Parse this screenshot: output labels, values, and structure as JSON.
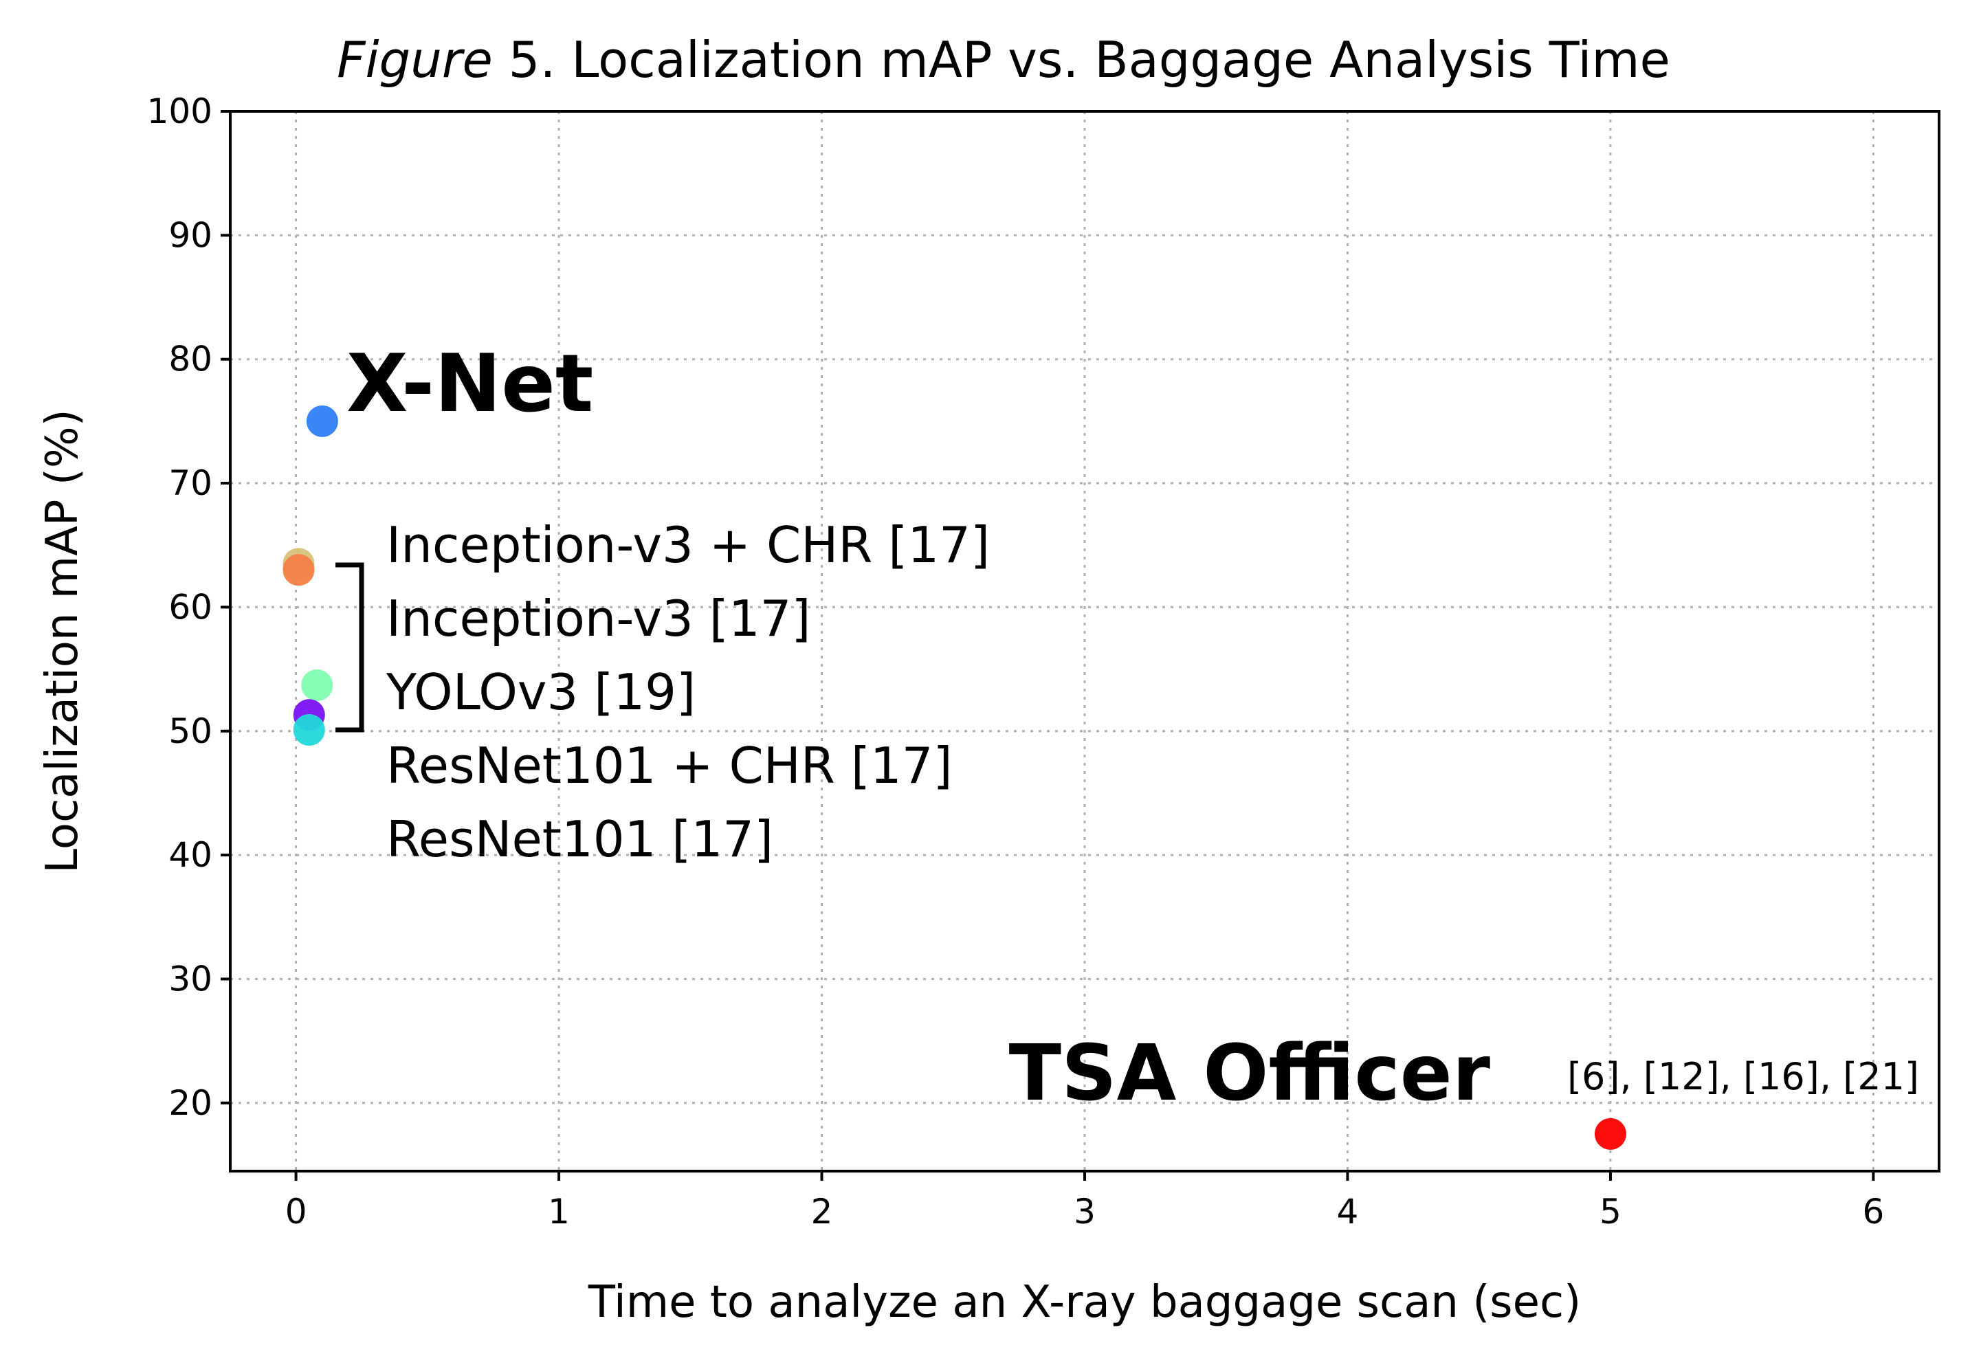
{
  "chart_data": {
    "type": "scatter",
    "title_italic": "Figure",
    "title_rest": " 5. Localization mAP vs. Baggage Analysis Time",
    "xlabel": "Time to analyze an X-ray baggage scan (sec)",
    "ylabel": "Localization mAP (%)",
    "xlim": [
      -0.25,
      6.25
    ],
    "ylim": [
      14.5,
      100
    ],
    "xticks": [
      0,
      1,
      2,
      3,
      4,
      5,
      6
    ],
    "yticks": [
      20,
      30,
      40,
      50,
      60,
      70,
      80,
      90,
      100
    ],
    "grid": true,
    "points": [
      {
        "x": 0.1,
        "y": 75.0,
        "color": "#2f7ff5"
      },
      {
        "x": 0.01,
        "y": 63.5,
        "color": "#d7c27a"
      },
      {
        "x": 0.01,
        "y": 63.0,
        "color": "#f47f45"
      },
      {
        "x": 0.08,
        "y": 53.7,
        "color": "#80ffb0"
      },
      {
        "x": 0.05,
        "y": 51.3,
        "color": "#7a12f5"
      },
      {
        "x": 0.05,
        "y": 50.1,
        "color": "#20d8d8"
      },
      {
        "x": 5.0,
        "y": 17.5,
        "color": "#ff0000"
      }
    ],
    "annotations": {
      "xnet": "X-Net",
      "group_labels": [
        "Inception-v3 + CHR [17]",
        "Inception-v3 [17]",
        "YOLOv3 [19]",
        "ResNet101 + CHR [17]",
        "ResNet101 [17]"
      ],
      "tsa": "TSA Officer",
      "tsa_refs": "[6], [12], [16], [21]"
    }
  }
}
